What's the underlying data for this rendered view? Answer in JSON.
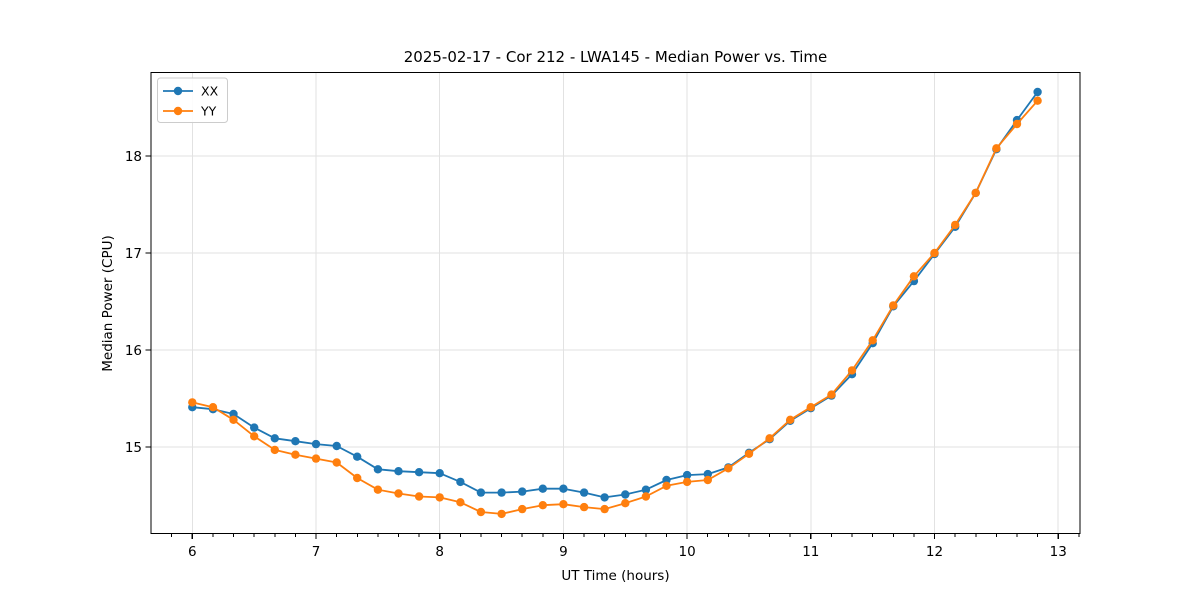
{
  "chart_data": {
    "type": "line",
    "title": "2025-02-17 - Cor 212 - LWA145 - Median Power vs. Time",
    "xlabel": "UT Time (hours)",
    "ylabel": "Median Power (CPU)",
    "xlim": [
      5.666,
      13.176
    ],
    "ylim": [
      14.106,
      18.861
    ],
    "x_major_ticks": [
      6,
      7,
      8,
      9,
      10,
      11,
      12,
      13
    ],
    "y_major_ticks": [
      15,
      16,
      17,
      18
    ],
    "x_minor_interval_hours": 0.1667,
    "grid": true,
    "legend": {
      "position": "upper-left",
      "entries": [
        "XX",
        "YY"
      ]
    },
    "x": [
      6.0,
      6.167,
      6.333,
      6.5,
      6.667,
      6.833,
      7.0,
      7.167,
      7.333,
      7.5,
      7.667,
      7.833,
      8.0,
      8.167,
      8.333,
      8.5,
      8.667,
      8.833,
      9.0,
      9.167,
      9.333,
      9.5,
      9.667,
      9.833,
      10.0,
      10.167,
      10.333,
      10.5,
      10.667,
      10.833,
      11.0,
      11.167,
      11.333,
      11.5,
      11.667,
      11.833,
      12.0,
      12.167,
      12.333,
      12.5,
      12.667,
      12.833
    ],
    "series": [
      {
        "name": "XX",
        "color": "#1f77b4",
        "values": [
          15.41,
          15.39,
          15.34,
          15.2,
          15.09,
          15.06,
          15.03,
          15.01,
          14.9,
          14.77,
          14.75,
          14.74,
          14.73,
          14.64,
          14.53,
          14.53,
          14.54,
          14.57,
          14.57,
          14.53,
          14.48,
          14.51,
          14.56,
          14.66,
          14.71,
          14.72,
          14.79,
          14.94,
          15.08,
          15.27,
          15.4,
          15.53,
          15.75,
          16.07,
          16.45,
          16.71,
          16.99,
          17.27,
          17.62,
          18.07,
          18.37,
          18.66
        ]
      },
      {
        "name": "YY",
        "color": "#ff7f0e",
        "values": [
          15.46,
          15.41,
          15.28,
          15.11,
          14.97,
          14.92,
          14.88,
          14.84,
          14.68,
          14.56,
          14.52,
          14.49,
          14.48,
          14.43,
          14.33,
          14.31,
          14.36,
          14.4,
          14.41,
          14.38,
          14.36,
          14.42,
          14.49,
          14.6,
          14.64,
          14.66,
          14.78,
          14.93,
          15.09,
          15.28,
          15.41,
          15.54,
          15.79,
          16.1,
          16.46,
          16.76,
          17.0,
          17.29,
          17.62,
          18.08,
          18.33,
          18.57
        ]
      }
    ],
    "style": {
      "grid_color": "#e2e2e2",
      "spine_color": "#000000",
      "background": "#ffffff"
    }
  }
}
